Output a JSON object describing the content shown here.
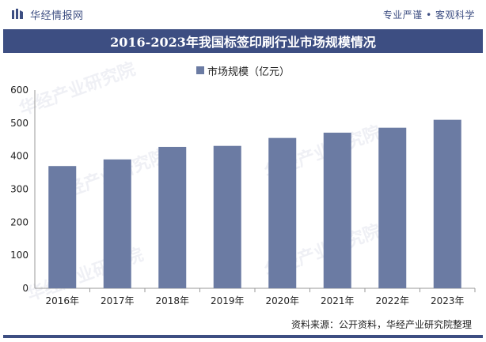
{
  "header": {
    "brand_name": "华经情报网",
    "slogan": "专业严谨 • 客观科学"
  },
  "footer": {
    "source": "资料来源：公开资料，华经产业研究院整理"
  },
  "watermark": "华经产业研究院",
  "colors": {
    "brand": "#3d4e82",
    "bar": "#6b7ba3"
  },
  "chart_data": {
    "type": "bar",
    "title": "2016-2023年我国标签印刷行业市场规模情况",
    "categories": [
      "2016年",
      "2017年",
      "2018年",
      "2019年",
      "2020年",
      "2021年",
      "2022年",
      "2023年"
    ],
    "series": [
      {
        "name": "市场规模（亿元）",
        "values": [
          370,
          390,
          428,
          431,
          455,
          471,
          486,
          510
        ]
      }
    ],
    "ylim": [
      0,
      600
    ],
    "yticks": [
      0,
      100,
      200,
      300,
      400,
      500,
      600
    ],
    "grid": false,
    "legend_position": "top-center"
  }
}
